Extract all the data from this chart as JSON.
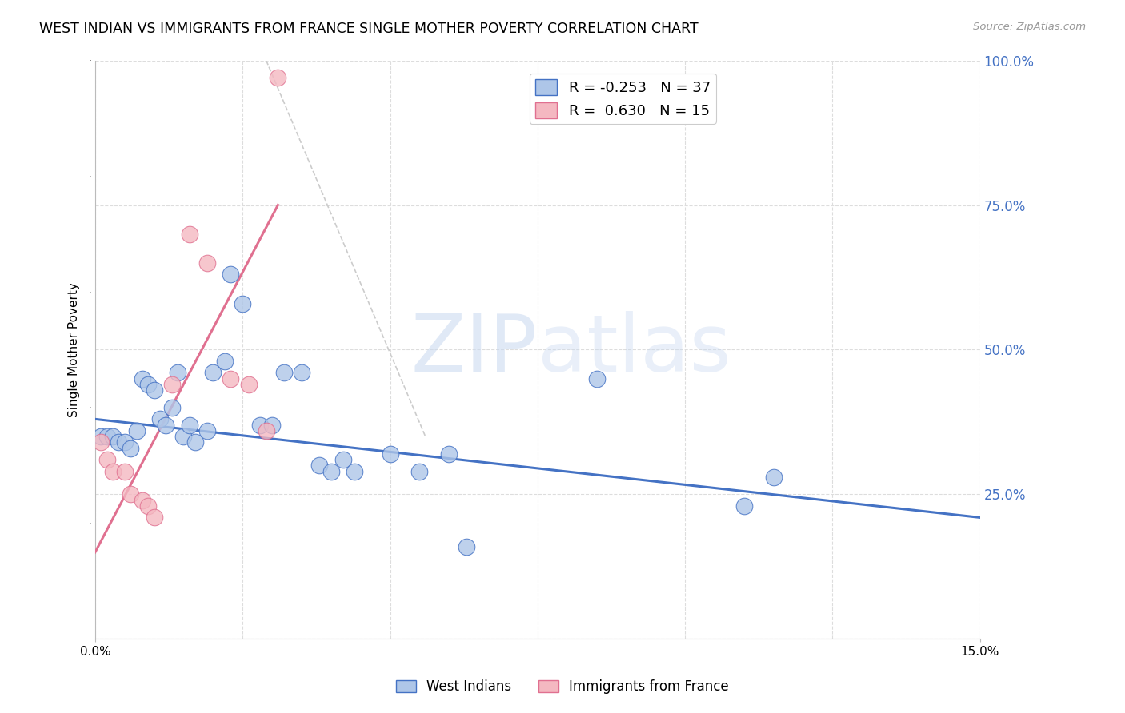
{
  "title": "WEST INDIAN VS IMMIGRANTS FROM FRANCE SINGLE MOTHER POVERTY CORRELATION CHART",
  "source": "Source: ZipAtlas.com",
  "ylabel": "Single Mother Poverty",
  "watermark_zip": "ZIP",
  "watermark_atlas": "atlas",
  "legend_blue_r": "-0.253",
  "legend_blue_n": "37",
  "legend_pink_r": "0.630",
  "legend_pink_n": "15",
  "legend_label_blue": "West Indians",
  "legend_label_pink": "Immigrants from France",
  "blue_color": "#aec6e8",
  "pink_color": "#f4b8c1",
  "blue_line_color": "#4472c4",
  "pink_line_color": "#e07090",
  "axis_color": "#bbbbbb",
  "grid_color": "#dddddd",
  "right_tick_color": "#4472c4",
  "blue_scatter": [
    [
      0.001,
      35
    ],
    [
      0.002,
      35
    ],
    [
      0.003,
      35
    ],
    [
      0.004,
      34
    ],
    [
      0.005,
      34
    ],
    [
      0.006,
      33
    ],
    [
      0.007,
      36
    ],
    [
      0.008,
      45
    ],
    [
      0.009,
      44
    ],
    [
      0.01,
      43
    ],
    [
      0.011,
      38
    ],
    [
      0.012,
      37
    ],
    [
      0.013,
      40
    ],
    [
      0.014,
      46
    ],
    [
      0.015,
      35
    ],
    [
      0.016,
      37
    ],
    [
      0.017,
      34
    ],
    [
      0.019,
      36
    ],
    [
      0.02,
      46
    ],
    [
      0.022,
      48
    ],
    [
      0.023,
      63
    ],
    [
      0.025,
      58
    ],
    [
      0.028,
      37
    ],
    [
      0.03,
      37
    ],
    [
      0.032,
      46
    ],
    [
      0.035,
      46
    ],
    [
      0.038,
      30
    ],
    [
      0.04,
      29
    ],
    [
      0.042,
      31
    ],
    [
      0.044,
      29
    ],
    [
      0.05,
      32
    ],
    [
      0.055,
      29
    ],
    [
      0.06,
      32
    ],
    [
      0.063,
      16
    ],
    [
      0.085,
      45
    ],
    [
      0.11,
      23
    ],
    [
      0.115,
      28
    ]
  ],
  "pink_scatter": [
    [
      0.001,
      34
    ],
    [
      0.002,
      31
    ],
    [
      0.003,
      29
    ],
    [
      0.005,
      29
    ],
    [
      0.006,
      25
    ],
    [
      0.008,
      24
    ],
    [
      0.009,
      23
    ],
    [
      0.01,
      21
    ],
    [
      0.013,
      44
    ],
    [
      0.016,
      70
    ],
    [
      0.019,
      65
    ],
    [
      0.023,
      45
    ],
    [
      0.026,
      44
    ],
    [
      0.029,
      36
    ],
    [
      0.031,
      97
    ]
  ],
  "blue_line_x": [
    0.0,
    0.15
  ],
  "blue_line_y": [
    38,
    21
  ],
  "pink_line_x": [
    0.0,
    0.031
  ],
  "pink_line_y": [
    15,
    75
  ],
  "diag_line_x": [
    0.029,
    0.056
  ],
  "diag_line_y": [
    100,
    35
  ],
  "xlim": [
    0,
    0.15
  ],
  "ylim": [
    0,
    100
  ],
  "xtick_positions": [
    0.0,
    0.025,
    0.05,
    0.075,
    0.1,
    0.125,
    0.15
  ],
  "ytick_positions": [
    0,
    25,
    50,
    75,
    100
  ],
  "ytick_labels_right": [
    "",
    "25.0%",
    "50.0%",
    "75.0%",
    "100.0%"
  ]
}
